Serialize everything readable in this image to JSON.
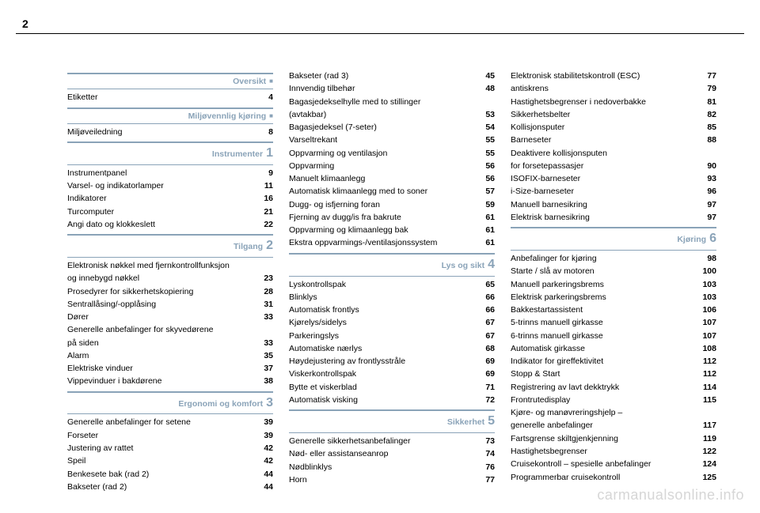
{
  "page_number": "2",
  "watermark": "carmanualsonline.info",
  "columns": [
    {
      "sections": [
        {
          "title": "Oversikt",
          "marker": "square",
          "entries": [
            {
              "t": "Etiketter",
              "p": "4"
            }
          ]
        },
        {
          "title": "Miljøvennlig kjøring",
          "marker": "square",
          "entries": [
            {
              "t": "Miljøveiledning",
              "p": "8"
            }
          ]
        },
        {
          "title": "Instrumenter",
          "marker": "1",
          "entries": [
            {
              "t": "Instrumentpanel",
              "p": "9"
            },
            {
              "t": "Varsel- og indikatorlamper",
              "p": "11"
            },
            {
              "t": "Indikatorer",
              "p": "16"
            },
            {
              "t": "Turcomputer",
              "p": "21"
            },
            {
              "t": "Angi dato og klokkeslett",
              "p": "22"
            }
          ]
        },
        {
          "title": "Tilgang",
          "marker": "2",
          "entries": [
            {
              "t": "Elektronisk nøkkel med fjernkontrollfunksjon",
              "p": ""
            },
            {
              "t": "og innebygd nøkkel",
              "p": "23"
            },
            {
              "t": "Prosedyrer for sikkerhetskopiering",
              "p": "28"
            },
            {
              "t": "Sentrallåsing/-opplåsing",
              "p": "31"
            },
            {
              "t": "Dører",
              "p": "33"
            },
            {
              "t": "Generelle anbefalinger for skyvedørene",
              "p": ""
            },
            {
              "t": "på siden",
              "p": "33"
            },
            {
              "t": "Alarm",
              "p": "35"
            },
            {
              "t": "Elektriske vinduer",
              "p": "37"
            },
            {
              "t": "Vippevinduer i bakdørene",
              "p": "38"
            }
          ]
        },
        {
          "title": "Ergonomi og komfort",
          "marker": "3",
          "entries": [
            {
              "t": "Generelle anbefalinger for setene",
              "p": "39"
            },
            {
              "t": "Forseter",
              "p": "39"
            },
            {
              "t": "Justering av rattet",
              "p": "42"
            },
            {
              "t": "Speil",
              "p": "42"
            },
            {
              "t": "Benkesete bak (rad 2)",
              "p": "44"
            },
            {
              "t": "Bakseter (rad 2)",
              "p": "44"
            }
          ]
        }
      ]
    },
    {
      "sections": [
        {
          "entries": [
            {
              "t": "Bakseter (rad 3)",
              "p": "45"
            },
            {
              "t": "Innvendig tilbehør",
              "p": "48"
            },
            {
              "t": "Bagasjedekselhylle med to stillinger",
              "p": ""
            },
            {
              "t": "(avtakbar)",
              "p": "53"
            },
            {
              "t": "Bagasjedeksel (7-seter)",
              "p": "54"
            },
            {
              "t": "Varseltrekant",
              "p": "55"
            },
            {
              "t": "Oppvarming og ventilasjon",
              "p": "55"
            },
            {
              "t": "Oppvarming",
              "p": "56"
            },
            {
              "t": "Manuelt klimaanlegg",
              "p": "56"
            },
            {
              "t": "Automatisk klimaanlegg med to soner",
              "p": "57"
            },
            {
              "t": "Dugg- og isfjerning foran",
              "p": "59"
            },
            {
              "t": "Fjerning av dugg/is fra bakrute",
              "p": "61"
            },
            {
              "t": "Oppvarming og klimaanlegg bak",
              "p": "61"
            },
            {
              "t": "Ekstra oppvarmings-/ventilasjonssystem",
              "p": "61"
            }
          ]
        },
        {
          "title": "Lys og sikt",
          "marker": "4",
          "entries": [
            {
              "t": "Lyskontrollspak",
              "p": "65"
            },
            {
              "t": "Blinklys",
              "p": "66"
            },
            {
              "t": "Automatisk frontlys",
              "p": "66"
            },
            {
              "t": "Kjørelys/sidelys",
              "p": "67"
            },
            {
              "t": "Parkeringslys",
              "p": "67"
            },
            {
              "t": "Automatiske nærlys",
              "p": "68"
            },
            {
              "t": "Høydejustering av frontlysstråle",
              "p": "69"
            },
            {
              "t": "Viskerkontrollspak",
              "p": "69"
            },
            {
              "t": "Bytte et viskerblad",
              "p": "71"
            },
            {
              "t": "Automatisk visking",
              "p": "72"
            }
          ]
        },
        {
          "title": "Sikkerhet",
          "marker": "5",
          "entries": [
            {
              "t": "Generelle sikkerhetsanbefalinger",
              "p": "73"
            },
            {
              "t": "Nød- eller assistanseanrop",
              "p": "74"
            },
            {
              "t": "Nødblinklys",
              "p": "76"
            },
            {
              "t": "Horn",
              "p": "77"
            }
          ]
        }
      ]
    },
    {
      "sections": [
        {
          "entries": [
            {
              "t": "Elektronisk stabilitetskontroll (ESC)",
              "p": "77"
            },
            {
              "t": "antiskrens",
              "p": "79"
            },
            {
              "t": "Hastighetsbegrenser i nedoverbakke",
              "p": "81"
            },
            {
              "t": "Sikkerhetsbelter",
              "p": "82"
            },
            {
              "t": "Kollisjonsputer",
              "p": "85"
            },
            {
              "t": "Barneseter",
              "p": "88"
            },
            {
              "t": "Deaktivere kollisjonsputen",
              "p": ""
            },
            {
              "t": "for forsetepassasjer",
              "p": "90"
            },
            {
              "t": "ISOFIX-barneseter",
              "p": "93"
            },
            {
              "t": "i-Size-barneseter",
              "p": "96"
            },
            {
              "t": "Manuell barnesikring",
              "p": "97"
            },
            {
              "t": "Elektrisk barnesikring",
              "p": "97"
            }
          ]
        },
        {
          "title": "Kjøring",
          "marker": "6",
          "entries": [
            {
              "t": "Anbefalinger for kjøring",
              "p": "98"
            },
            {
              "t": "Starte / slå av motoren",
              "p": "100"
            },
            {
              "t": "Manuell parkeringsbrems",
              "p": "103"
            },
            {
              "t": "Elektrisk parkeringsbrems",
              "p": "103"
            },
            {
              "t": "Bakkestartassistent",
              "p": "106"
            },
            {
              "t": "5-trinns manuell girkasse",
              "p": "107"
            },
            {
              "t": "6-trinns manuell girkasse",
              "p": "107"
            },
            {
              "t": "Automatisk girkasse",
              "p": "108"
            },
            {
              "t": "Indikator for gireffektivitet",
              "p": "112"
            },
            {
              "t": "Stopp & Start",
              "p": "112"
            },
            {
              "t": "Registrering av lavt dekktrykk",
              "p": "114"
            },
            {
              "t": "Frontrutedisplay",
              "p": "115"
            },
            {
              "t": "Kjøre- og manøvreringshjelp –",
              "p": ""
            },
            {
              "t": "generelle anbefalinger",
              "p": "117"
            },
            {
              "t": "Fartsgrense skiltgjenkjenning",
              "p": "119"
            },
            {
              "t": "Hastighetsbegrenser",
              "p": "122"
            },
            {
              "t": "Cruisekontroll – spesielle anbefalinger",
              "p": "124"
            },
            {
              "t": "Programmerbar cruisekontroll",
              "p": "125"
            }
          ]
        }
      ]
    }
  ]
}
